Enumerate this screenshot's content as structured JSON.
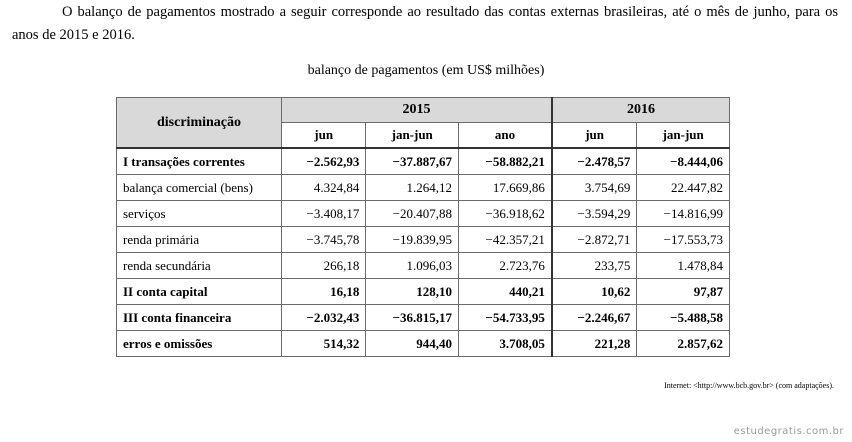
{
  "intro": "O balanço de pagamentos mostrado a seguir corresponde ao resultado das contas externas brasileiras, até o mês de junho, para os anos de 2015 e 2016.",
  "table_title": "balanço de pagamentos (em US$ milhões)",
  "header": {
    "row_label": "discriminação",
    "year_2015": "2015",
    "year_2016": "2016",
    "subcols": [
      "jun",
      "jan-jun",
      "ano",
      "jun",
      "jan-jun"
    ]
  },
  "rows": [
    {
      "label": "I transações correntes",
      "bold": true,
      "values": [
        "−2.562,93",
        "−37.887,67",
        "−58.882,21",
        "−2.478,57",
        "−8.444,06"
      ]
    },
    {
      "label": "balança comercial (bens)",
      "bold": false,
      "values": [
        "4.324,84",
        "1.264,12",
        "17.669,86",
        "3.754,69",
        "22.447,82"
      ]
    },
    {
      "label": "serviços",
      "bold": false,
      "values": [
        "−3.408,17",
        "−20.407,88",
        "−36.918,62",
        "−3.594,29",
        "−14.816,99"
      ]
    },
    {
      "label": "renda primária",
      "bold": false,
      "values": [
        "−3.745,78",
        "−19.839,95",
        "−42.357,21",
        "−2.872,71",
        "−17.553,73"
      ]
    },
    {
      "label": "renda secundária",
      "bold": false,
      "values": [
        "266,18",
        "1.096,03",
        "2.723,76",
        "233,75",
        "1.478,84"
      ]
    },
    {
      "label": "II conta capital",
      "bold": true,
      "values": [
        "16,18",
        "128,10",
        "440,21",
        "10,62",
        "97,87"
      ]
    },
    {
      "label": "III conta financeira",
      "bold": true,
      "values": [
        "−2.032,43",
        "−36.815,17",
        "−54.733,95",
        "−2.246,67",
        "−5.488,58"
      ]
    },
    {
      "label": "erros e omissões",
      "bold": true,
      "values": [
        "514,32",
        "944,40",
        "3.708,05",
        "221,28",
        "2.857,62"
      ]
    }
  ],
  "source": "Internet: <http://www.bcb.gov.br> (com adaptações).",
  "watermark": "estudegratis.com.br"
}
